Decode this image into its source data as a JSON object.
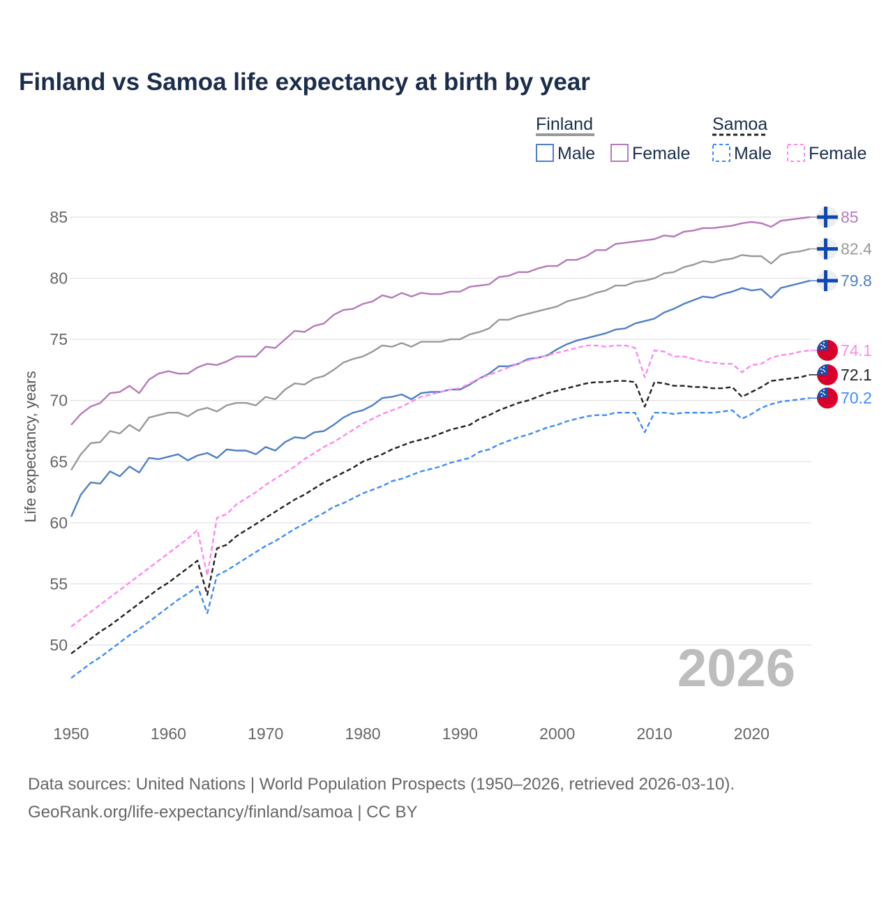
{
  "chart_data": {
    "type": "line",
    "title": "Finland vs Samoa life expectancy at birth by year",
    "xlabel": "",
    "ylabel": "Life expectancy, years",
    "xlim": [
      1950,
      2026
    ],
    "ylim": [
      47,
      87
    ],
    "x_ticks": [
      1950,
      1960,
      1970,
      1980,
      1990,
      2000,
      2010,
      2020
    ],
    "y_ticks": [
      50,
      55,
      60,
      65,
      70,
      75,
      80,
      85
    ],
    "grid": "horizontal",
    "legend_position": "top-right",
    "year_watermark": "2026",
    "legend": {
      "groups": [
        {
          "name": "Finland",
          "items": [
            "Male",
            "Female"
          ]
        },
        {
          "name": "Samoa",
          "items": [
            "Male",
            "Female"
          ]
        }
      ]
    },
    "x_start": 1950,
    "series": [
      {
        "name": "Finland Female",
        "country": "Finland",
        "color": "#b57ab8",
        "dashed": false,
        "end_label": "85",
        "values": [
          68.0,
          68.9,
          69.5,
          69.8,
          70.6,
          70.7,
          71.2,
          70.6,
          71.7,
          72.2,
          72.4,
          72.2,
          72.2,
          72.7,
          73.0,
          72.9,
          73.2,
          73.6,
          73.6,
          73.6,
          74.4,
          74.3,
          75.0,
          75.7,
          75.6,
          76.1,
          76.3,
          77.0,
          77.4,
          77.5,
          77.9,
          78.1,
          78.6,
          78.4,
          78.8,
          78.5,
          78.8,
          78.7,
          78.7,
          78.9,
          78.9,
          79.3,
          79.4,
          79.5,
          80.1,
          80.2,
          80.5,
          80.5,
          80.8,
          81.0,
          81.0,
          81.5,
          81.5,
          81.8,
          82.3,
          82.3,
          82.8,
          82.9,
          83.0,
          83.1,
          83.2,
          83.5,
          83.4,
          83.8,
          83.9,
          84.1,
          84.1,
          84.2,
          84.3,
          84.5,
          84.6,
          84.5,
          84.2,
          84.7,
          84.8,
          84.9,
          85.0
        ]
      },
      {
        "name": "Finland",
        "country": "Finland",
        "color": "#999999",
        "dashed": false,
        "end_label": "82.4",
        "values": [
          64.3,
          65.6,
          66.5,
          66.6,
          67.5,
          67.3,
          68.0,
          67.5,
          68.6,
          68.8,
          69.0,
          69.0,
          68.7,
          69.2,
          69.4,
          69.1,
          69.6,
          69.8,
          69.8,
          69.6,
          70.3,
          70.1,
          70.9,
          71.4,
          71.3,
          71.8,
          72.0,
          72.5,
          73.1,
          73.4,
          73.6,
          74.0,
          74.5,
          74.4,
          74.7,
          74.4,
          74.8,
          74.8,
          74.8,
          75.0,
          75.0,
          75.4,
          75.6,
          75.9,
          76.6,
          76.6,
          76.9,
          77.1,
          77.3,
          77.5,
          77.7,
          78.1,
          78.3,
          78.5,
          78.8,
          79.0,
          79.4,
          79.4,
          79.7,
          79.8,
          80.0,
          80.4,
          80.5,
          80.9,
          81.1,
          81.4,
          81.3,
          81.5,
          81.6,
          81.9,
          81.8,
          81.8,
          81.2,
          81.9,
          82.1,
          82.2,
          82.4
        ]
      },
      {
        "name": "Finland Male",
        "country": "Finland",
        "color": "#4f7fc8",
        "dashed": false,
        "end_label": "79.8",
        "values": [
          60.5,
          62.3,
          63.3,
          63.2,
          64.2,
          63.8,
          64.6,
          64.1,
          65.3,
          65.2,
          65.4,
          65.6,
          65.1,
          65.5,
          65.7,
          65.3,
          66.0,
          65.9,
          65.9,
          65.6,
          66.2,
          65.9,
          66.6,
          67.0,
          66.9,
          67.4,
          67.5,
          68.0,
          68.6,
          69.0,
          69.2,
          69.6,
          70.2,
          70.3,
          70.5,
          70.1,
          70.6,
          70.7,
          70.7,
          70.9,
          70.9,
          71.3,
          71.8,
          72.2,
          72.8,
          72.8,
          73.0,
          73.4,
          73.5,
          73.7,
          74.2,
          74.6,
          74.9,
          75.1,
          75.3,
          75.5,
          75.8,
          75.9,
          76.3,
          76.5,
          76.7,
          77.2,
          77.5,
          77.9,
          78.2,
          78.5,
          78.4,
          78.7,
          78.9,
          79.2,
          79.0,
          79.1,
          78.4,
          79.2,
          79.4,
          79.6,
          79.8
        ]
      },
      {
        "name": "Samoa Female",
        "country": "Samoa",
        "color": "#ff88ee",
        "dashed": true,
        "end_label": "74.1",
        "values": [
          51.5,
          52.1,
          52.7,
          53.3,
          53.9,
          54.5,
          55.1,
          55.7,
          56.3,
          56.9,
          57.5,
          58.1,
          58.7,
          59.4,
          55.7,
          60.4,
          60.7,
          61.5,
          62.0,
          62.5,
          63.1,
          63.6,
          64.1,
          64.6,
          65.2,
          65.7,
          66.2,
          66.6,
          67.1,
          67.6,
          68.1,
          68.5,
          68.9,
          69.2,
          69.5,
          69.9,
          70.3,
          70.5,
          70.7,
          70.9,
          71.0,
          71.4,
          71.8,
          72.1,
          72.4,
          72.7,
          73.0,
          73.3,
          73.5,
          73.7,
          73.9,
          74.1,
          74.3,
          74.5,
          74.5,
          74.4,
          74.5,
          74.5,
          74.3,
          71.9,
          74.1,
          74.0,
          73.6,
          73.6,
          73.4,
          73.2,
          73.1,
          73.0,
          73.0,
          72.3,
          72.9,
          73.0,
          73.5,
          73.7,
          73.8,
          74.0,
          74.1
        ]
      },
      {
        "name": "Samoa",
        "country": "Samoa",
        "color": "#222222",
        "dashed": true,
        "end_label": "72.1",
        "values": [
          49.3,
          49.9,
          50.5,
          51.1,
          51.6,
          52.2,
          52.8,
          53.4,
          54.0,
          54.6,
          55.1,
          55.7,
          56.3,
          56.9,
          54.1,
          57.9,
          58.2,
          58.9,
          59.4,
          59.9,
          60.4,
          60.9,
          61.4,
          61.9,
          62.3,
          62.8,
          63.3,
          63.7,
          64.1,
          64.5,
          65.0,
          65.3,
          65.6,
          66.0,
          66.3,
          66.6,
          66.8,
          67.0,
          67.3,
          67.6,
          67.8,
          68.0,
          68.5,
          68.8,
          69.2,
          69.5,
          69.8,
          70.0,
          70.3,
          70.6,
          70.8,
          71.0,
          71.2,
          71.4,
          71.5,
          71.5,
          71.6,
          71.6,
          71.5,
          69.5,
          71.5,
          71.4,
          71.2,
          71.2,
          71.1,
          71.1,
          71.0,
          71.0,
          71.1,
          70.3,
          70.7,
          71.1,
          71.6,
          71.7,
          71.8,
          71.9,
          72.1
        ]
      },
      {
        "name": "Samoa Male",
        "country": "Samoa",
        "color": "#3d8bff",
        "dashed": true,
        "end_label": "70.2",
        "values": [
          47.3,
          47.9,
          48.5,
          49.0,
          49.6,
          50.2,
          50.8,
          51.3,
          51.9,
          52.5,
          53.1,
          53.7,
          54.2,
          54.8,
          52.6,
          55.7,
          56.1,
          56.6,
          57.1,
          57.6,
          58.1,
          58.5,
          59.0,
          59.5,
          59.9,
          60.4,
          60.8,
          61.3,
          61.6,
          62.0,
          62.4,
          62.7,
          63.0,
          63.4,
          63.6,
          63.9,
          64.2,
          64.4,
          64.6,
          64.9,
          65.1,
          65.3,
          65.8,
          66.0,
          66.4,
          66.7,
          67.0,
          67.2,
          67.5,
          67.8,
          68.0,
          68.3,
          68.5,
          68.7,
          68.8,
          68.8,
          69.0,
          69.0,
          69.0,
          67.4,
          69.0,
          69.0,
          68.9,
          69.0,
          69.0,
          69.0,
          69.0,
          69.1,
          69.2,
          68.5,
          68.9,
          69.4,
          69.7,
          69.9,
          70.0,
          70.1,
          70.2
        ]
      }
    ]
  },
  "footer": {
    "source_line": "Data sources: United Nations | World Population Prospects (1950–2026, retrieved 2026-03-10).",
    "url_line": "GeoRank.org/life-expectancy/finland/samoa | CC BY"
  },
  "colors": {
    "title": "#1b2d4b",
    "finland_flag_blue": "#0d47b5",
    "samoa_red": "#d9002a",
    "samoa_blue": "#1e4fa8"
  }
}
